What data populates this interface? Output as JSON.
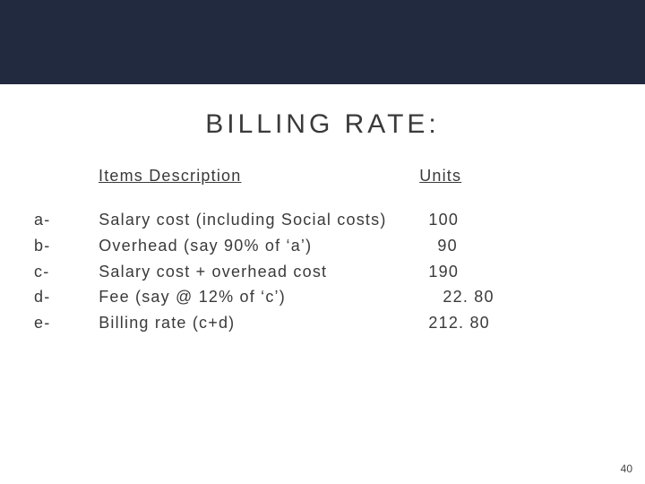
{
  "colors": {
    "band": "#222a3f",
    "text": "#3a3a3a",
    "background": "#ffffff"
  },
  "title": "BILLING RATE:",
  "headers": {
    "description": "Items Description",
    "units": "Units"
  },
  "rows": [
    {
      "key": "a-",
      "desc": "Salary cost (including Social costs)",
      "value": "100",
      "pad": ""
    },
    {
      "key": "b-",
      "desc": "Overhead (say 90% of ‘a’)",
      "value": "90",
      "pad": "pad1"
    },
    {
      "key": "c-",
      "desc": "Salary cost + overhead cost",
      "value": "190",
      "pad": ""
    },
    {
      "key": "d-",
      "desc": "Fee (say @ 12% of ‘c’)",
      "value": "22. 80",
      "pad": "pad2"
    },
    {
      "key": "e-",
      "desc": "Billing rate (c+d)",
      "value": "212. 80",
      "pad": ""
    }
  ],
  "page_number": "40"
}
